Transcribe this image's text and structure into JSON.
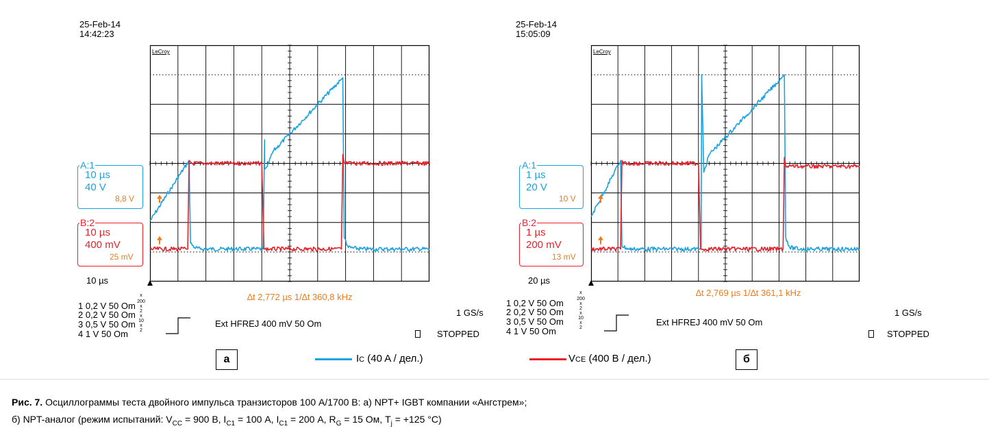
{
  "colors": {
    "ic": "#1aa3e0",
    "vce": "#e8202a",
    "accent": "#ee7b1b",
    "grid": "#000000"
  },
  "panels": [
    {
      "letter": "а",
      "date": "25-Feb-14",
      "time": "14:42:23",
      "brand": "LeCroy",
      "A": {
        "label": "A:1",
        "time": "10 µs",
        "volt": "40 V",
        "offset": "8,8 V"
      },
      "B": {
        "label": "B:2",
        "time": "10 µs",
        "volt": "400 mV",
        "offset": "25 mV"
      },
      "timebase": "10 µs",
      "delta": "∆t  2,772 µs   1/∆t  360,8 kHz",
      "channels": [
        {
          "text": "1  0,2 V  50 Om",
          "mult": [
            "x",
            "200"
          ]
        },
        {
          "text": "2  0,2 V  50 Om",
          "mult": [
            "x",
            "2"
          ]
        },
        {
          "text": "3  0,5 V  50 Om",
          "mult": [
            "x",
            "10"
          ]
        },
        {
          "text": "4  1 V  50 Om",
          "mult": [
            "x",
            "2"
          ]
        }
      ],
      "trigger": "Ext HFREJ 400 mV 50 Om",
      "rate": "1 GS/s",
      "status_icon": "square-icon",
      "status": "STOPPED"
    },
    {
      "letter": "б",
      "date": "25-Feb-14",
      "time": "15:05:09",
      "brand": "LeCroy",
      "A": {
        "label": "A:1",
        "time": "1 µs",
        "volt": "20 V",
        "offset": "10 V"
      },
      "B": {
        "label": "B:2",
        "time": "1 µs",
        "volt": "200 mV",
        "offset": "13 mV"
      },
      "timebase": "20 µs",
      "delta": "∆t  2,769 µs   1/∆t  361,1 kHz",
      "channels": [
        {
          "text": "1  0,2 V  50 Om",
          "mult": [
            "x",
            "200"
          ]
        },
        {
          "text": "2  0,2 V  50 Om",
          "mult": [
            "x",
            "2"
          ]
        },
        {
          "text": "3  0,5 V  50 Om",
          "mult": [
            "x",
            "10"
          ]
        },
        {
          "text": "4  1 V  50 Om",
          "mult": [
            "x",
            "2"
          ]
        }
      ],
      "trigger": "Ext HFREJ 400 mV 50 Om",
      "rate": "1 GS/s",
      "status_icon": "square-icon",
      "status": "STOPPED"
    }
  ],
  "legend": {
    "ic": {
      "main": "I",
      "sub": "C",
      "rest": " (40 A / дел.)"
    },
    "vce": {
      "main": "V",
      "sub": "CE",
      "rest": " (400 В / дел.)"
    }
  },
  "caption": {
    "bold": "Рис. 7.",
    "line1": " Осциллограммы теста двойного импульса транзисторов 100 А/1700 В: а) NPT+ IGBT компании «Ангстрем»;",
    "line2": {
      "p1": "б) NPT-аналог (режим испытаний: V",
      "s1": "CC",
      "p2": " = 900 В, I",
      "s2": "C1",
      "p3": " = 100 А, I",
      "s3": "C1",
      "p4": " = 200 А, R",
      "s4": "G",
      "p5": " = 15 Ом, T",
      "s5": "j",
      "p6": " = +125 °С)"
    }
  },
  "chart_data": [
    {
      "type": "line",
      "title": "",
      "grid": true,
      "grid_divisions": {
        "x": 10,
        "y": 8
      },
      "ylim": [
        -4,
        4
      ],
      "xlim": [
        -5,
        5
      ],
      "series": [
        {
          "name": "Ic",
          "color": "#1aa3e0",
          "x": [
            -5,
            -3.6,
            -3.55,
            -3.4,
            -3.2,
            -1.2,
            -0.95,
            -0.9,
            -0.9,
            -0.8,
            -0.6,
            1.8,
            1.9,
            1.95,
            2.1,
            2.6,
            5
          ],
          "y": [
            -1.95,
            0.1,
            -2.7,
            -2.85,
            -2.9,
            -2.9,
            -2.9,
            0.8,
            -0.2,
            -0.1,
            0.4,
            2.8,
            2.9,
            -2.5,
            -2.85,
            -2.9,
            -2.9
          ]
        },
        {
          "name": "VCE",
          "color": "#e8202a",
          "x": [
            -5,
            -3.65,
            -3.6,
            -3.5,
            -1.0,
            -0.92,
            -0.88,
            -0.7,
            1.85,
            1.9,
            1.95,
            5
          ],
          "y": [
            -2.9,
            -2.9,
            0.1,
            0.0,
            0.0,
            -2.9,
            -2.9,
            -2.9,
            -2.9,
            0.3,
            0.0,
            0.0
          ]
        }
      ]
    },
    {
      "type": "line",
      "title": "",
      "grid": true,
      "grid_divisions": {
        "x": 10,
        "y": 8
      },
      "ylim": [
        -4,
        4
      ],
      "xlim": [
        -5,
        5
      ],
      "series": [
        {
          "name": "Ic",
          "color": "#1aa3e0",
          "x": [
            -5,
            -3.9,
            -3.85,
            -3.6,
            -3.3,
            -1.0,
            -0.9,
            -0.88,
            -0.8,
            -0.6,
            2.1,
            2.2,
            2.25,
            2.4,
            2.8,
            5
          ],
          "y": [
            -1.8,
            0.1,
            -2.8,
            -2.9,
            -2.9,
            -2.9,
            -2.9,
            3.0,
            -0.3,
            0.3,
            2.9,
            3.0,
            -2.5,
            -2.85,
            -2.9,
            -2.9
          ]
        },
        {
          "name": "VCE",
          "color": "#e8202a",
          "x": [
            -5,
            -3.9,
            -3.85,
            -3.8,
            -1.0,
            -0.92,
            -0.88,
            2.15,
            2.2,
            2.25,
            5
          ],
          "y": [
            -2.9,
            -2.9,
            0.1,
            0.0,
            0.0,
            -2.9,
            -2.9,
            -2.9,
            0.2,
            -0.1,
            -0.1
          ]
        }
      ]
    }
  ]
}
